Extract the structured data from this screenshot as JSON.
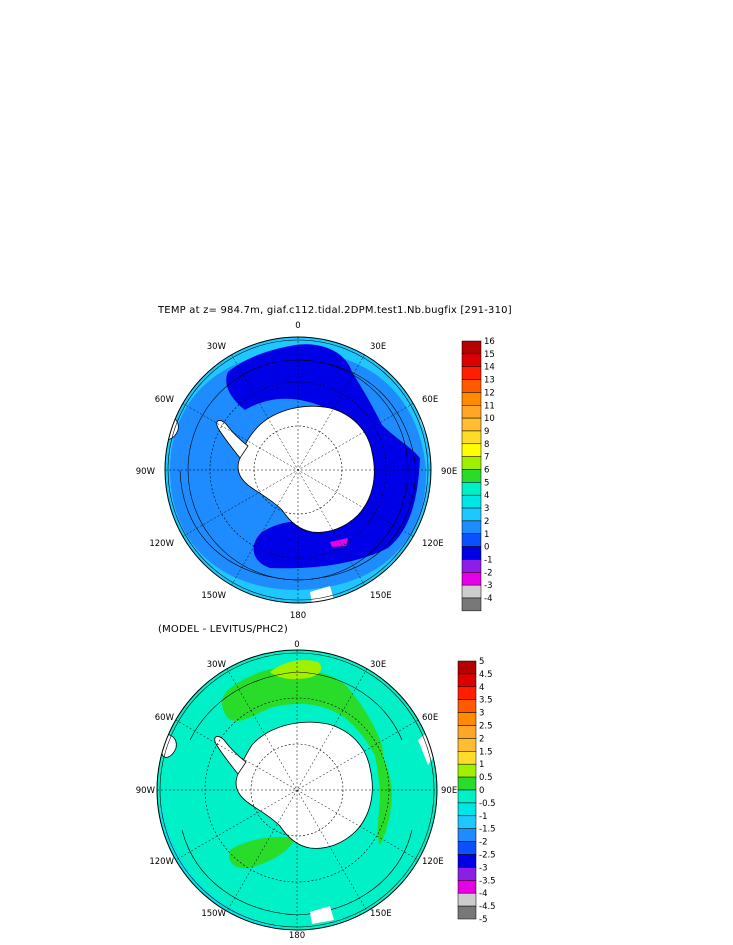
{
  "panel1": {
    "title": "TEMP at z= 984.7m, giaf.c112.tidal.2DPM.test1.Nb.bugfix [291-310]",
    "longitude_labels": [
      "0",
      "30E",
      "60E",
      "90E",
      "120E",
      "150E",
      "180",
      "150W",
      "120W",
      "90W",
      "60W",
      "30W"
    ],
    "colorbar": {
      "ticks": [
        "16",
        "15",
        "14",
        "13",
        "12",
        "11",
        "10",
        "9",
        "8",
        "7",
        "6",
        "5",
        "4",
        "3",
        "2",
        "1",
        "0",
        "-1",
        "-2",
        "-3",
        "-4"
      ],
      "colors": [
        "#b40000",
        "#dc0000",
        "#ff1e00",
        "#ff5a00",
        "#ff8c00",
        "#ffa528",
        "#ffbe32",
        "#ffdc28",
        "#ffff00",
        "#a0f000",
        "#2adc2a",
        "#00f0c8",
        "#00e6e6",
        "#1ec8ff",
        "#1e8cff",
        "#0a50ff",
        "#0000e6",
        "#8c1ee6",
        "#e600e6",
        "#cccccc",
        "#787878"
      ]
    }
  },
  "panel2": {
    "title": "(MODEL - LEVITUS/PHC2)",
    "longitude_labels": [
      "0",
      "30E",
      "60E",
      "90E",
      "120E",
      "150E",
      "180",
      "150W",
      "120W",
      "90W",
      "60W",
      "30W"
    ],
    "colorbar": {
      "ticks": [
        "5",
        "4.5",
        "4",
        "3.5",
        "3",
        "2.5",
        "2",
        "1.5",
        "1",
        "0.5",
        "0",
        "-0.5",
        "-1",
        "-1.5",
        "-2",
        "-2.5",
        "-3",
        "-3.5",
        "-4",
        "-4.5",
        "-5"
      ],
      "colors": [
        "#b40000",
        "#dc0000",
        "#ff1e00",
        "#ff5a00",
        "#ff8c00",
        "#ffa528",
        "#ffbe32",
        "#ffdc28",
        "#a0f000",
        "#2adc2a",
        "#00f0c8",
        "#00e6e6",
        "#1ec8ff",
        "#1e8cff",
        "#0a50ff",
        "#0000e6",
        "#8c1ee6",
        "#e600e6",
        "#cccccc",
        "#787878"
      ]
    }
  }
}
